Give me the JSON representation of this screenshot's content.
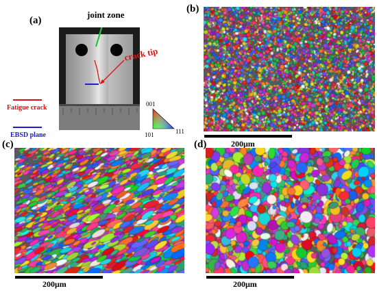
{
  "panels": {
    "a": {
      "label": "(a)"
    },
    "b": {
      "label": "(b)"
    },
    "c": {
      "label": "(c)"
    },
    "d": {
      "label": "(d)"
    }
  },
  "photo": {
    "joint_zone_label": "joint zone",
    "crack_tip_label": "crack tip",
    "colors": {
      "joint_arrow": "#22c23a",
      "crack": "#e01010",
      "ebsd": "#1a1ad8"
    }
  },
  "legend": {
    "fatigue_crack": "Fatigue crack",
    "ebsd_plane": "EBSD plane",
    "fatigue_color": "#e01010",
    "ebsd_color": "#1a1ad8"
  },
  "ipf_key": {
    "top": "001",
    "left": "101",
    "right": "111"
  },
  "scale_bars": {
    "b": "200μm",
    "c": "200μm",
    "d": "200μm"
  },
  "maps": {
    "b": {
      "texture": "fine"
    },
    "c": {
      "texture": "elongated"
    },
    "d": {
      "texture": "coarse"
    }
  }
}
